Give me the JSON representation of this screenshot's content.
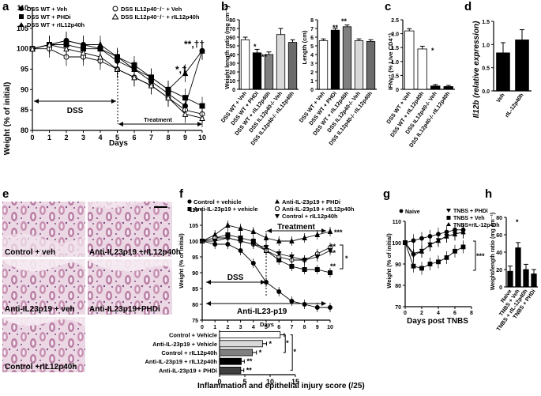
{
  "panels": {
    "a": {
      "letter": "a",
      "legend": [
        "DSS WT + Veh",
        "DSS WT + PHDi",
        "DSS WT + rIL12p40h",
        "DSS IL12p40⁻/⁻ + Veh",
        "DSS IL12p40⁻/⁻ + rIL12p40h"
      ],
      "ylabel": "Weight (% of initial)",
      "xlabel": "Days",
      "dss_label": "DSS",
      "treatment_label": "Treatment",
      "sig1": "*,†",
      "sig2": "**,††"
    },
    "b": {
      "letter": "b",
      "ylabel_left": "Weight length ratio (mg cm⁻¹)",
      "ylabel_right": "Length (cm)",
      "groups": [
        "DSS WT + Veh",
        "DSS WT + PHDi",
        "DSS WT + rIL12p40h",
        "DSS IL12p40⁻/⁻ Veh",
        "DSS IL12p40⁻/⁻ rIL12p40h"
      ],
      "sig_single": "*",
      "sig_double": "**"
    },
    "c": {
      "letter": "c",
      "ylabel": "IFNγ⁺ (% Live CD4⁺)",
      "groups": [
        "DSS WT + Veh",
        "DSS WT + rIL12p40h",
        "DSS IL12p40⁻/⁻ Veh",
        "DSS IL12p40⁻/⁻ rIL12p40h"
      ],
      "sig": "*"
    },
    "d": {
      "letter": "d",
      "ylabel": "Il12b (relative expression)",
      "groups": [
        "Veh",
        "rIL-12p40h"
      ]
    },
    "e": {
      "letter": "e",
      "captions": [
        "Control + veh",
        "Anti-IL23p19 +rIL12p40h",
        "Anti-IL23p19 + veh",
        "Anti-IL23p19+PHDi",
        "Control +rIL12p40h"
      ]
    },
    "f": {
      "letter": "f",
      "legend": [
        "Control + vehicle",
        "Anti-IL-23p19 + vehicle",
        "Anti-IL-23p19 + PHDi",
        "Anti-IL-23p19 + rIL12p40h",
        "Control + rIL12p40h"
      ],
      "ylabel": "Weight (% of initial)",
      "xlabel": "Days",
      "treatment_label": "Treatment",
      "dss_label": "DSS",
      "anti_label": "Anti-IL23-p19",
      "sigs": [
        "***",
        "**",
        "**",
        "**",
        "*"
      ],
      "score_title": "Inflammation and epithelial injury score (/25)",
      "score_groups": [
        "Control + Vehicle",
        "Anti-IL-23p19 + Vehicle",
        "Control + rIL12p40h",
        "Anti-IL-23p19 + rIL12p40h",
        "Anti-IL-23p19 + PHDi"
      ]
    },
    "g": {
      "letter": "g",
      "legend": [
        "Naive",
        "TNBS + PHDi",
        "TNBS + Veh",
        "TNBS+rIL-12p40h"
      ],
      "ylabel": "Weight (% of initial)",
      "xlabel": "Days post TNBS",
      "sig": "***"
    },
    "h": {
      "letter": "h",
      "ylabel": "Weight/length ratio (mg cm⁻¹)",
      "groups": [
        "Naive",
        "TNBS + Veh",
        "TNBS + rIL-12p40h",
        "TNBS + PHDi"
      ],
      "sig": "*"
    }
  },
  "chart_data": [
    {
      "id": "a",
      "type": "line",
      "title": "",
      "xlabel": "Days",
      "ylabel": "Weight (% of initial)",
      "x": [
        0,
        1,
        2,
        3,
        4,
        5,
        6,
        7,
        8,
        9,
        10
      ],
      "xlim": [
        0,
        10
      ],
      "ylim": [
        80,
        110
      ],
      "yticks": [
        80,
        85,
        90,
        95,
        100,
        105,
        110
      ],
      "series": [
        {
          "name": "DSS WT + Veh",
          "marker": "circle-filled",
          "values": [
            100,
            101,
            102,
            101,
            100,
            97,
            95,
            92,
            89,
            86,
            99.5
          ]
        },
        {
          "name": "DSS WT + PHDi",
          "marker": "square-filled",
          "values": [
            100,
            101,
            101,
            100,
            100,
            98,
            96,
            93,
            90,
            88,
            86
          ]
        },
        {
          "name": "DSS WT + rIL12p40h",
          "marker": "triangle-filled",
          "values": [
            100,
            101,
            102,
            101,
            101,
            98,
            95,
            93,
            90,
            94,
            99.5
          ]
        },
        {
          "name": "DSS IL12p40-/- + Veh",
          "marker": "circle-open",
          "values": [
            100,
            100,
            98,
            98,
            97,
            95,
            93,
            91,
            88,
            85,
            84
          ]
        },
        {
          "name": "DSS IL12p40-/- + rIL12p40h",
          "marker": "triangle-open",
          "values": [
            100,
            101,
            100,
            99,
            98,
            95,
            93,
            91,
            88,
            84,
            83
          ]
        }
      ]
    },
    {
      "id": "b-left",
      "type": "bar",
      "ylabel": "Weight length ratio (mg cm-1)",
      "categories": [
        "DSS WT + Veh",
        "DSS WT + PHDi",
        "DSS WT + rIL12p40h",
        "DSS IL12p40-/- Veh",
        "DSS IL12p40-/- rIL12p40h"
      ],
      "values": [
        57,
        42,
        40,
        63,
        54
      ],
      "errors": [
        3,
        4,
        3,
        7,
        3
      ],
      "ylim": [
        0,
        80
      ],
      "yticks": [
        0,
        10,
        20,
        30,
        40,
        50,
        60,
        70,
        80
      ]
    },
    {
      "id": "b-right",
      "type": "bar",
      "ylabel": "Length (cm)",
      "categories": [
        "DSS WT + Veh",
        "DSS WT + PHDi",
        "DSS WT + rIL12p40h",
        "DSS IL12p40-/- Veh",
        "DSS IL12p40-/- rIL12p40h"
      ],
      "values": [
        5.6,
        6.8,
        7.2,
        5.6,
        5.5
      ],
      "errors": [
        0.2,
        0.2,
        0.2,
        0.2,
        0.2
      ],
      "ylim": [
        0,
        8
      ],
      "yticks": [
        0,
        1,
        2,
        3,
        4,
        5,
        6,
        7,
        8
      ]
    },
    {
      "id": "c",
      "type": "bar",
      "ylabel": "IFNg+ (% Live CD4+)",
      "categories": [
        "DSS WT + Veh",
        "DSS WT + rIL12p40h",
        "DSS IL12p40-/- Veh",
        "DSS IL12p40-/- rIL12p40h"
      ],
      "values": [
        2.1,
        1.45,
        0.12,
        0.1
      ],
      "errors": [
        0.08,
        0.1,
        0.05,
        0.04
      ],
      "ylim": [
        0,
        2.5
      ],
      "yticks": [
        0,
        0.5,
        1.0,
        1.5,
        2.0,
        2.5
      ]
    },
    {
      "id": "d",
      "type": "bar",
      "ylabel": "Il12b (relative expression)",
      "categories": [
        "Veh",
        "rIL-12p40h"
      ],
      "values": [
        0.82,
        1.1
      ],
      "errors": [
        0.22,
        0.22
      ],
      "ylim": [
        0,
        1.5
      ],
      "yticks": [
        0.0,
        0.5,
        1.0,
        1.5
      ]
    },
    {
      "id": "f",
      "type": "line",
      "xlabel": "Days",
      "ylabel": "Weight (% of initial)",
      "x": [
        0,
        1,
        2,
        3,
        4,
        5,
        6,
        7,
        8,
        9,
        10
      ],
      "xlim": [
        0,
        10
      ],
      "ylim": [
        75,
        110
      ],
      "yticks": [
        75,
        80,
        85,
        90,
        95,
        100,
        105,
        110
      ],
      "series": [
        {
          "name": "Control + vehicle",
          "marker": "circle-filled",
          "values": [
            100,
            99,
            99,
            97,
            93,
            87,
            84,
            81,
            80,
            79,
            79
          ]
        },
        {
          "name": "Anti-IL-23p19 + vehicle",
          "marker": "square-filled",
          "values": [
            100,
            101,
            102,
            101,
            100,
            97,
            94,
            92,
            91,
            91,
            90
          ]
        },
        {
          "name": "Anti-IL-23p19 + PHDi",
          "marker": "triangle-filled",
          "values": [
            100,
            102,
            105,
            104,
            103,
            101,
            100,
            100,
            101,
            102,
            103
          ]
        },
        {
          "name": "Anti-IL-23p19 + rIL12p40h",
          "marker": "circle-open",
          "values": [
            100,
            101,
            101,
            100,
            99,
            97,
            95,
            94,
            94,
            96,
            98
          ]
        },
        {
          "name": "Control + rIL12p40h",
          "marker": "triangle-down-filled",
          "values": [
            100,
            100,
            101,
            100,
            99,
            98,
            96,
            95,
            94,
            95,
            97
          ]
        }
      ]
    },
    {
      "id": "f-score",
      "type": "bar",
      "orientation": "horizontal",
      "xlabel": "Inflammation and epithelial injury score (/25)",
      "categories": [
        "Control + Vehicle",
        "Anti-IL-23p19 + Vehicle",
        "Control + rIL12p40h",
        "Anti-IL-23p19 + rIL12p40h",
        "Anti-IL-23p19 + PHDi"
      ],
      "values": [
        12,
        8.5,
        6.5,
        4.3,
        4.2
      ],
      "errors": [
        0.8,
        0.8,
        0.8,
        0.6,
        0.6
      ],
      "xlim": [
        0,
        15
      ],
      "xticks": [
        0,
        5,
        10,
        15
      ]
    },
    {
      "id": "g",
      "type": "line",
      "xlabel": "Days post TNBS",
      "ylabel": "Weight (% of initial)",
      "x": [
        0,
        1,
        2,
        3,
        4,
        5,
        6,
        7
      ],
      "xlim": [
        0,
        8
      ],
      "ylim": [
        70,
        110
      ],
      "yticks": [
        70,
        80,
        90,
        100,
        110
      ],
      "xticks": [
        0,
        2,
        4,
        6,
        8
      ],
      "series": [
        {
          "name": "Naive",
          "marker": "circle-filled",
          "values": [
            100,
            101,
            102,
            103,
            104,
            105,
            106,
            106
          ]
        },
        {
          "name": "TNBS + PHDi",
          "marker": "triangle-down-filled",
          "values": [
            100,
            94,
            96,
            99,
            101,
            103,
            104,
            105
          ]
        },
        {
          "name": "TNBS + Veh",
          "marker": "square-filled",
          "values": [
            100,
            89,
            88,
            90,
            91,
            93,
            96,
            98
          ]
        },
        {
          "name": "TNBS+rIL-12p40h",
          "marker": "triangle-filled",
          "values": [
            100,
            95,
            96,
            99,
            101,
            103,
            104,
            105
          ]
        }
      ]
    },
    {
      "id": "h",
      "type": "bar",
      "ylabel": "Weight/length ratio (mg cm-1)",
      "categories": [
        "Naive",
        "TNBS + Veh",
        "TNBS + rIL-12p40h",
        "TNBS + PHDi"
      ],
      "values": [
        18,
        45,
        20,
        15
      ],
      "errors": [
        6,
        6,
        6,
        5
      ],
      "ylim": [
        0,
        80
      ],
      "yticks": [
        0,
        20,
        40,
        60,
        80
      ]
    }
  ]
}
